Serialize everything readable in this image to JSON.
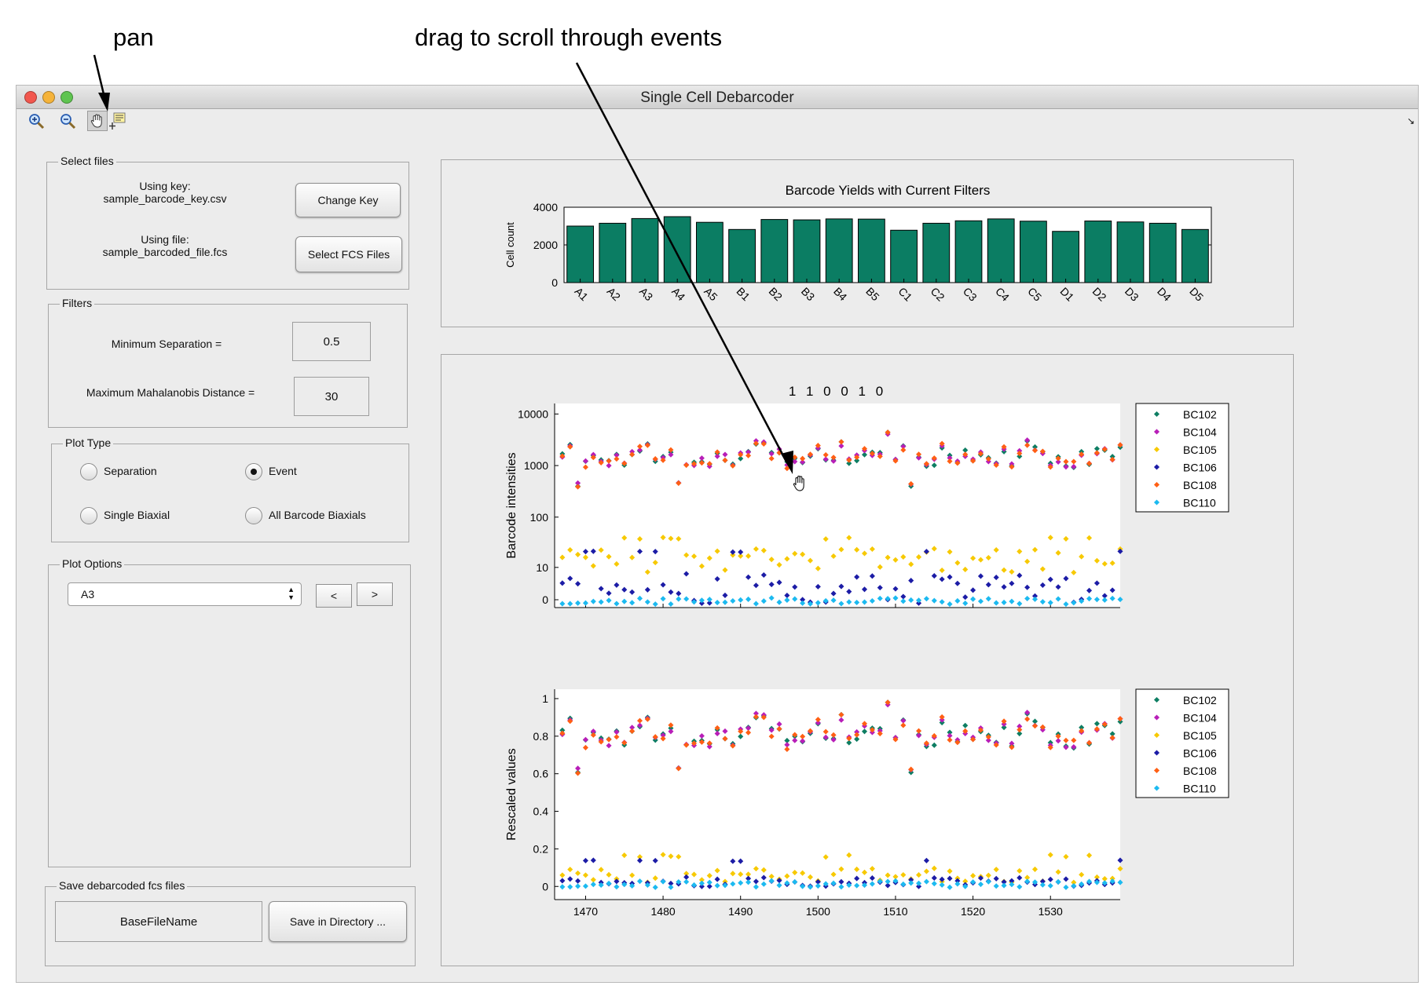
{
  "annotations": {
    "pan": "pan",
    "scroll": "drag to scroll through events"
  },
  "window": {
    "title": "Single Cell Debarcoder"
  },
  "toolbar": {
    "icons": [
      "zoom-in-icon",
      "zoom-out-icon",
      "pan-hand-icon",
      "data-cursor-icon"
    ],
    "active": "pan-hand-icon"
  },
  "select_files": {
    "label": "Select files",
    "key_line1": "Using key:",
    "key_line2": "sample_barcode_key.csv",
    "change_key": "Change Key",
    "file_line1": "Using file:",
    "file_line2": "sample_barcoded_file.fcs",
    "select_fcs": "Select FCS Files"
  },
  "filters": {
    "label": "Filters",
    "min_sep_label": "Minimum Separation =",
    "min_sep_value": "0.5",
    "max_mahal_label": "Maximum Mahalanobis Distance =",
    "max_mahal_value": "30"
  },
  "plot_type": {
    "label": "Plot Type",
    "options": [
      "Separation",
      "Event",
      "Single Biaxial",
      "All Barcode Biaxials"
    ],
    "selected": "Event"
  },
  "plot_options": {
    "label": "Plot Options",
    "selected": "A3",
    "prev": "<",
    "next": ">"
  },
  "save": {
    "label": "Save debarcoded fcs files",
    "base_name": "BaseFileName",
    "save_button": "Save in Directory ..."
  },
  "colors": {
    "bar": "#0b7d63",
    "BC102": "#0e7e63",
    "BC104": "#b81eb8",
    "BC105": "#f7c900",
    "BC106": "#1c1ca6",
    "BC108": "#ff5f14",
    "BC110": "#1cbaf0"
  },
  "chart_data": [
    {
      "type": "bar",
      "title": "Barcode Yields with Current Filters",
      "ylabel": "Cell count",
      "ylim": [
        0,
        4000
      ],
      "yticks": [
        "0",
        "2000",
        "4000"
      ],
      "categories": [
        "A1",
        "A2",
        "A3",
        "A4",
        "A5",
        "B1",
        "B2",
        "B3",
        "B4",
        "B5",
        "C1",
        "C2",
        "C3",
        "C4",
        "C5",
        "D1",
        "D2",
        "D3",
        "D4",
        "D5"
      ],
      "values": [
        3000,
        3150,
        3400,
        3500,
        3200,
        2820,
        3350,
        3330,
        3380,
        3370,
        2780,
        3150,
        3280,
        3380,
        3260,
        2720,
        3270,
        3220,
        3150,
        2820
      ]
    },
    {
      "type": "scatter",
      "title": "1 1 0 0 1 0",
      "ylabel": "Barcode intensities",
      "yscale": "arcsinh",
      "yticks": [
        "0",
        "10",
        "100",
        "1000",
        "10000"
      ],
      "xlim": [
        1466,
        1539
      ],
      "legend": [
        "BC102",
        "BC104",
        "BC105",
        "BC106",
        "BC108",
        "BC110"
      ],
      "legend_position": "right"
    },
    {
      "type": "scatter",
      "ylabel": "Rescaled values",
      "ylim": [
        -0.07,
        1.05
      ],
      "yticks": [
        "0",
        "0.2",
        "0.4",
        "0.6",
        "0.8",
        "1"
      ],
      "xlim": [
        1466,
        1539
      ],
      "xticks": [
        "1470",
        "1480",
        "1490",
        "1500",
        "1510",
        "1520",
        "1530"
      ],
      "legend": [
        "BC102",
        "BC104",
        "BC105",
        "BC106",
        "BC108",
        "BC110"
      ],
      "legend_position": "right"
    }
  ]
}
